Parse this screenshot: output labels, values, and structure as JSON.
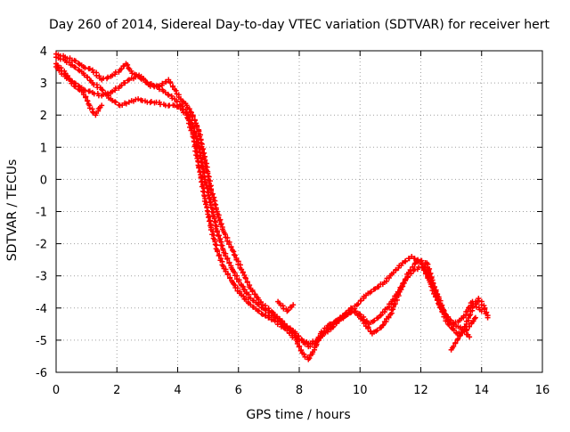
{
  "chart_data": {
    "type": "scatter",
    "title": "Day 260 of 2014, Sidereal Day-to-day VTEC variation (SDTVAR) for receiver hert",
    "xlabel": "GPS time / hours",
    "ylabel": "SDTVAR / TECUs",
    "xlim": [
      0,
      16
    ],
    "ylim": [
      -6,
      4
    ],
    "xticks": [
      0,
      2,
      4,
      6,
      8,
      10,
      12,
      14,
      16
    ],
    "yticks": [
      -6,
      -5,
      -4,
      -3,
      -2,
      -1,
      0,
      1,
      2,
      3,
      4
    ],
    "grid": true,
    "legend": "none",
    "marker": "+",
    "series": [
      {
        "name": "track-1",
        "color": "#ff0000",
        "points": [
          [
            0.0,
            3.6
          ],
          [
            0.3,
            3.3
          ],
          [
            0.6,
            2.9
          ],
          [
            0.9,
            2.7
          ],
          [
            1.1,
            2.3
          ],
          [
            1.2,
            2.1
          ],
          [
            1.3,
            2.0
          ],
          [
            1.4,
            2.2
          ],
          [
            1.5,
            2.3
          ]
        ]
      },
      {
        "name": "track-2",
        "color": "#ff0000",
        "points": [
          [
            0.0,
            3.8
          ],
          [
            0.3,
            3.7
          ],
          [
            0.6,
            3.5
          ],
          [
            0.9,
            3.3
          ],
          [
            1.2,
            3.0
          ],
          [
            1.5,
            2.8
          ],
          [
            1.8,
            2.5
          ],
          [
            2.1,
            2.3
          ],
          [
            2.4,
            2.4
          ],
          [
            2.7,
            2.5
          ],
          [
            3.0,
            2.4
          ],
          [
            3.3,
            2.4
          ],
          [
            3.6,
            2.3
          ],
          [
            3.9,
            2.3
          ],
          [
            4.1,
            2.2
          ],
          [
            4.3,
            2.0
          ],
          [
            4.5,
            1.4
          ],
          [
            4.7,
            0.4
          ],
          [
            4.9,
            -0.6
          ],
          [
            5.1,
            -1.5
          ],
          [
            5.3,
            -2.2
          ],
          [
            5.5,
            -2.7
          ],
          [
            5.8,
            -3.2
          ],
          [
            6.1,
            -3.6
          ],
          [
            6.4,
            -3.9
          ],
          [
            6.8,
            -4.2
          ],
          [
            7.2,
            -4.4
          ],
          [
            7.6,
            -4.7
          ],
          [
            7.9,
            -5.0
          ],
          [
            8.1,
            -5.4
          ],
          [
            8.3,
            -5.6
          ],
          [
            8.5,
            -5.3
          ],
          [
            8.7,
            -4.8
          ],
          [
            9.0,
            -4.5
          ],
          [
            9.3,
            -4.4
          ],
          [
            9.6,
            -4.2
          ],
          [
            9.9,
            -3.9
          ],
          [
            10.2,
            -3.6
          ],
          [
            10.5,
            -3.4
          ],
          [
            10.8,
            -3.2
          ],
          [
            11.1,
            -2.9
          ],
          [
            11.4,
            -2.6
          ],
          [
            11.7,
            -2.4
          ],
          [
            12.0,
            -2.6
          ],
          [
            12.3,
            -3.2
          ],
          [
            12.6,
            -3.9
          ],
          [
            12.9,
            -4.5
          ],
          [
            13.2,
            -4.8
          ],
          [
            13.5,
            -4.7
          ],
          [
            13.8,
            -4.3
          ]
        ]
      },
      {
        "name": "track-3",
        "color": "#ff0000",
        "points": [
          [
            0.0,
            3.5
          ],
          [
            0.3,
            3.2
          ],
          [
            0.6,
            3.0
          ],
          [
            0.9,
            2.8
          ],
          [
            1.2,
            2.7
          ],
          [
            1.5,
            2.6
          ],
          [
            1.8,
            2.7
          ],
          [
            2.1,
            2.9
          ],
          [
            2.4,
            3.1
          ],
          [
            2.7,
            3.2
          ],
          [
            3.0,
            3.0
          ],
          [
            3.3,
            2.9
          ],
          [
            3.6,
            2.7
          ],
          [
            3.9,
            2.5
          ],
          [
            4.1,
            2.3
          ],
          [
            4.3,
            2.1
          ],
          [
            4.5,
            1.7
          ],
          [
            4.7,
            1.0
          ],
          [
            4.9,
            0.0
          ],
          [
            5.1,
            -0.8
          ],
          [
            5.3,
            -1.6
          ],
          [
            5.5,
            -2.2
          ],
          [
            5.8,
            -2.8
          ],
          [
            6.1,
            -3.3
          ],
          [
            6.4,
            -3.7
          ],
          [
            6.8,
            -4.0
          ],
          [
            7.2,
            -4.3
          ],
          [
            7.5,
            -4.5
          ],
          [
            7.8,
            -4.7
          ],
          [
            8.1,
            -5.0
          ],
          [
            8.3,
            -5.2
          ],
          [
            8.5,
            -5.1
          ],
          [
            8.8,
            -4.8
          ],
          [
            9.1,
            -4.6
          ],
          [
            9.4,
            -4.3
          ],
          [
            9.7,
            -4.0
          ],
          [
            10.0,
            -4.2
          ],
          [
            10.3,
            -4.5
          ],
          [
            10.6,
            -4.3
          ],
          [
            10.9,
            -4.0
          ],
          [
            11.2,
            -3.6
          ],
          [
            11.5,
            -3.1
          ],
          [
            11.8,
            -2.8
          ],
          [
            12.1,
            -2.7
          ],
          [
            12.4,
            -3.3
          ],
          [
            12.7,
            -4.0
          ],
          [
            13.0,
            -4.5
          ],
          [
            13.3,
            -4.6
          ],
          [
            13.6,
            -4.9
          ]
        ]
      },
      {
        "name": "track-4",
        "color": "#ff0000",
        "points": [
          [
            0.0,
            3.9
          ],
          [
            0.3,
            3.8
          ],
          [
            0.6,
            3.7
          ],
          [
            0.9,
            3.5
          ],
          [
            1.2,
            3.4
          ],
          [
            1.5,
            3.1
          ],
          [
            1.8,
            3.2
          ],
          [
            2.1,
            3.4
          ],
          [
            2.3,
            3.6
          ],
          [
            2.5,
            3.3
          ],
          [
            2.8,
            3.2
          ],
          [
            3.1,
            2.9
          ],
          [
            3.4,
            2.9
          ],
          [
            3.7,
            3.1
          ],
          [
            3.9,
            2.8
          ],
          [
            4.1,
            2.5
          ],
          [
            4.3,
            2.3
          ],
          [
            4.5,
            2.0
          ],
          [
            4.7,
            1.5
          ],
          [
            4.9,
            0.6
          ],
          [
            5.1,
            -0.3
          ],
          [
            5.3,
            -1.0
          ],
          [
            5.5,
            -1.6
          ],
          [
            5.8,
            -2.2
          ],
          [
            6.1,
            -2.8
          ],
          [
            6.4,
            -3.4
          ],
          [
            6.8,
            -3.9
          ],
          [
            7.2,
            -4.2
          ],
          [
            7.6,
            -4.6
          ],
          [
            8.0,
            -5.0
          ],
          [
            8.3,
            -5.1
          ],
          [
            8.6,
            -5.0
          ],
          [
            8.9,
            -4.7
          ],
          [
            9.2,
            -4.4
          ],
          [
            9.5,
            -4.2
          ],
          [
            9.8,
            -4.1
          ],
          [
            10.1,
            -4.4
          ],
          [
            10.4,
            -4.8
          ],
          [
            10.7,
            -4.6
          ],
          [
            11.0,
            -4.2
          ],
          [
            11.3,
            -3.5
          ],
          [
            11.6,
            -2.9
          ],
          [
            11.9,
            -2.5
          ],
          [
            12.2,
            -2.6
          ],
          [
            12.5,
            -3.5
          ],
          [
            12.8,
            -4.2
          ],
          [
            13.1,
            -4.5
          ],
          [
            13.4,
            -4.3
          ],
          [
            13.7,
            -3.8
          ],
          [
            14.0,
            -4.1
          ]
        ]
      },
      {
        "name": "track-5",
        "color": "#ff0000",
        "points": [
          [
            7.3,
            -3.8
          ],
          [
            7.6,
            -4.1
          ],
          [
            7.8,
            -3.9
          ]
        ]
      },
      {
        "name": "track-6",
        "color": "#ff0000",
        "points": [
          [
            13.0,
            -5.3
          ],
          [
            13.2,
            -5.0
          ],
          [
            13.5,
            -4.5
          ],
          [
            13.7,
            -4.0
          ],
          [
            13.9,
            -3.7
          ],
          [
            14.1,
            -4.0
          ],
          [
            14.2,
            -4.3
          ]
        ]
      }
    ]
  }
}
